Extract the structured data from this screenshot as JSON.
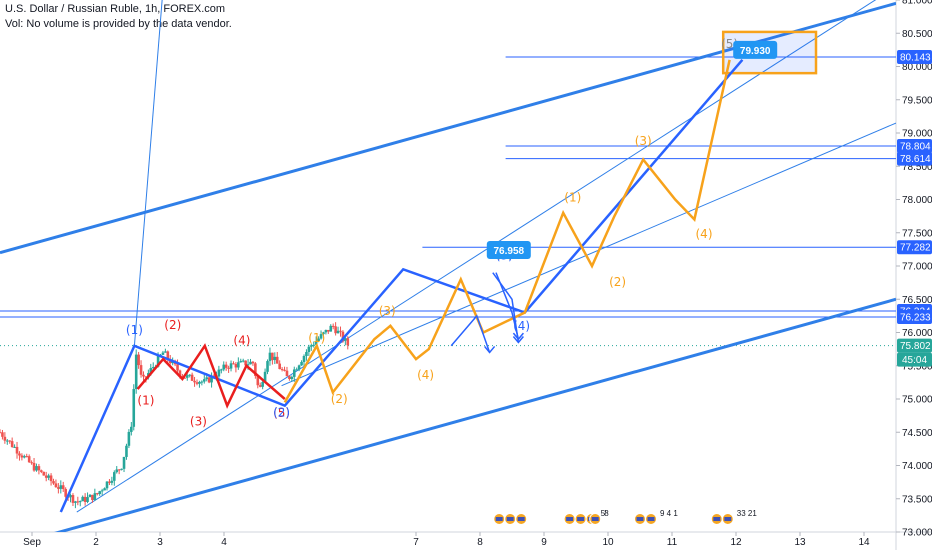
{
  "header": {
    "symbol_line": "U.S. Dollar / Russian Ruble, 1h, FOREX.com",
    "volume_note": "Vol: No volume is provided by the data vendor."
  },
  "chart_data": {
    "type": "line",
    "title": "U.S. Dollar / Russian Ruble, 1h, FOREX.com",
    "ylim": [
      73.0,
      81.0
    ],
    "xlim": [
      0.5,
      14.5
    ],
    "y_ticks": [
      "81.000",
      "80.500",
      "80.000",
      "79.500",
      "79.000",
      "78.500",
      "78.000",
      "77.500",
      "77.000",
      "76.500",
      "76.000",
      "75.500",
      "75.000",
      "74.500",
      "74.000",
      "73.500",
      "73.000"
    ],
    "x_ticks": [
      {
        "x": 1,
        "label": "Sep"
      },
      {
        "x": 2,
        "label": "2"
      },
      {
        "x": 3,
        "label": "3"
      },
      {
        "x": 4,
        "label": "4"
      },
      {
        "x": 7,
        "label": "7"
      },
      {
        "x": 8,
        "label": "8"
      },
      {
        "x": 9,
        "label": "9"
      },
      {
        "x": 10,
        "label": "10"
      },
      {
        "x": 11,
        "label": "11"
      },
      {
        "x": 12,
        "label": "12"
      },
      {
        "x": 13,
        "label": "13"
      },
      {
        "x": 14,
        "label": "14"
      }
    ],
    "price_levels": [
      {
        "value": 80.143,
        "label": "80.143"
      },
      {
        "value": 78.804,
        "label": "78.804"
      },
      {
        "value": 78.614,
        "label": "78.614"
      },
      {
        "value": 77.282,
        "label": "77.282"
      },
      {
        "value": 76.324,
        "label": "76.324"
      },
      {
        "value": 76.233,
        "label": "76.233"
      }
    ],
    "last_price": {
      "value": 75.802,
      "label": "75.802",
      "countdown": "45:04"
    },
    "target_labels": [
      {
        "x": 8.45,
        "y": 77.24,
        "label": "76.958"
      },
      {
        "x": 12.3,
        "y": 80.25,
        "label": "79.930"
      }
    ],
    "candles": {
      "seed": 7,
      "segments": [
        {
          "x": [
            0.5,
            1.0,
            1.7,
            2.0,
            2.4,
            2.55,
            2.63,
            2.72,
            3.05,
            3.35,
            3.7,
            4.05,
            4.45,
            4.55,
            4.7,
            5.0,
            5.35,
            5.7,
            5.95
          ],
          "y": [
            74.5,
            74.0,
            73.45,
            73.55,
            74.0,
            74.6,
            75.7,
            75.25,
            75.7,
            75.35,
            75.25,
            75.5,
            75.55,
            75.1,
            75.7,
            75.3,
            75.8,
            76.1,
            75.8
          ]
        }
      ]
    },
    "channel_lines": [
      {
        "x": [
          0.5,
          14.5
        ],
        "y": [
          77.2,
          80.95
        ],
        "width": 3
      },
      {
        "x": [
          0.5,
          14.5
        ],
        "y": [
          72.75,
          76.5
        ],
        "width": 3
      },
      {
        "x": [
          1.7,
          14.5
        ],
        "y": [
          73.3,
          81.2
        ],
        "width": 1
      },
      {
        "x": [
          4.9,
          14.5
        ],
        "y": [
          75.2,
          79.15
        ],
        "width": 1
      },
      {
        "x": [
          2.6,
          3.05
        ],
        "y": [
          75.8,
          81.2
        ],
        "width": 1
      }
    ],
    "waves": [
      {
        "name": "",
        "color": "#2962ff",
        "width": 2.5,
        "x": [
          1.45,
          2.6,
          4.95,
          6.8,
          8.7,
          12.1
        ],
        "y": [
          73.3,
          75.8,
          74.9,
          76.95,
          76.3,
          80.1
        ]
      },
      {
        "name": "",
        "color": "#e91e1e",
        "width": 2.5,
        "x": [
          2.65,
          3.05,
          3.35,
          3.7,
          4.05,
          4.35,
          4.95
        ],
        "y": [
          75.15,
          75.6,
          75.3,
          75.8,
          74.9,
          75.5,
          75.0
        ]
      },
      {
        "name": "",
        "color": "#f7a21b",
        "width": 2.5,
        "x": [
          4.95,
          5.45,
          5.7,
          6.35,
          6.6,
          7.0,
          7.2,
          7.7,
          8.05,
          8.7,
          9.3,
          9.75,
          10.1,
          10.55,
          11.05,
          11.35,
          11.9
        ],
        "y": [
          74.95,
          75.8,
          75.1,
          75.9,
          76.1,
          75.6,
          75.75,
          76.8,
          76.0,
          76.3,
          77.8,
          77.0,
          77.75,
          78.6,
          78.0,
          77.7,
          80.1
        ]
      }
    ],
    "wave_labels": [
      {
        "x": 2.6,
        "y": 75.98,
        "text": "(1)",
        "color": "#2962ff"
      },
      {
        "x": 2.78,
        "y": 74.92,
        "text": "(1)",
        "color": "#e91e1e"
      },
      {
        "x": 3.2,
        "y": 76.05,
        "text": "(2)",
        "color": "#e91e1e"
      },
      {
        "x": 3.6,
        "y": 74.6,
        "text": "(3)",
        "color": "#e91e1e"
      },
      {
        "x": 4.28,
        "y": 75.82,
        "text": "(4)",
        "color": "#e91e1e"
      },
      {
        "x": 4.9,
        "y": 74.73,
        "text": "(5)",
        "color": "#e91e1e"
      },
      {
        "x": 4.9,
        "y": 74.74,
        "text": "(2)",
        "color": "#2962ff"
      },
      {
        "x": 5.45,
        "y": 75.86,
        "text": "(1)",
        "color": "#f7a21b"
      },
      {
        "x": 5.8,
        "y": 74.94,
        "text": "(2)",
        "color": "#f7a21b"
      },
      {
        "x": 6.55,
        "y": 76.26,
        "text": "(3)",
        "color": "#f7a21b"
      },
      {
        "x": 7.15,
        "y": 75.3,
        "text": "(4)",
        "color": "#f7a21b"
      },
      {
        "x": 8.38,
        "y": 77.1,
        "text": "(3)",
        "color": "#2962ff"
      },
      {
        "x": 8.38,
        "y": 77.12,
        "text": "(5)",
        "color": "#888888"
      },
      {
        "x": 8.65,
        "y": 76.04,
        "text": "(4)",
        "color": "#2962ff"
      },
      {
        "x": 9.45,
        "y": 77.97,
        "text": "(1)",
        "color": "#f7a21b"
      },
      {
        "x": 10.15,
        "y": 76.7,
        "text": "(2)",
        "color": "#f7a21b"
      },
      {
        "x": 10.55,
        "y": 78.82,
        "text": "(3)",
        "color": "#f7a21b"
      },
      {
        "x": 11.5,
        "y": 77.42,
        "text": "(4)",
        "color": "#f7a21b"
      },
      {
        "x": 11.9,
        "y": 80.28,
        "text": "(5)",
        "color": "#888888"
      }
    ],
    "arrows": [
      {
        "x": [
          7.55,
          7.95,
          8.15
        ],
        "y": [
          75.8,
          76.25,
          75.7
        ],
        "color": "#2962ff"
      },
      {
        "x": [
          8.2,
          8.5,
          8.6
        ],
        "y": [
          76.9,
          76.5,
          75.85
        ],
        "color": "#2962ff"
      },
      {
        "x": [
          8.25,
          8.5,
          8.6
        ],
        "y": [
          76.9,
          76.3,
          75.9
        ],
        "color": "#2962ff"
      }
    ],
    "events": [
      {
        "x": 8.3,
        "count": 3,
        "text": ""
      },
      {
        "x": 9.4,
        "count": 3,
        "text": "5'"
      },
      {
        "x": 9.8,
        "count": 1,
        "text": "8"
      },
      {
        "x": 10.5,
        "count": 2,
        "text": "9 4 1"
      },
      {
        "x": 11.7,
        "count": 2,
        "text": "33 21"
      }
    ],
    "highlight_box": {
      "x": [
        11.8,
        13.25
      ],
      "y": [
        79.9,
        80.52
      ],
      "color": "#f7a21b"
    }
  }
}
